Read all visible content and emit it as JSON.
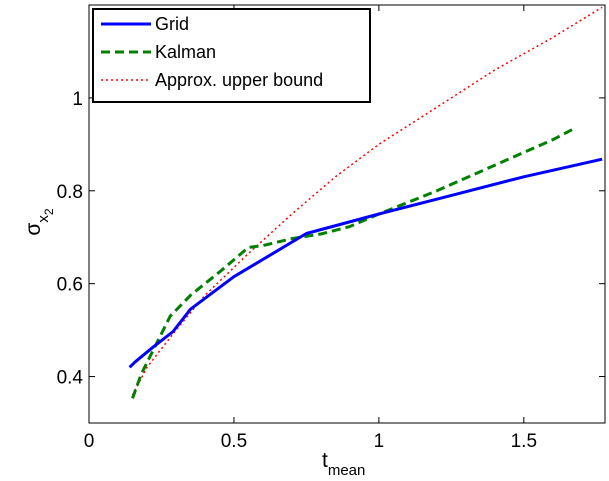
{
  "chart_data": {
    "type": "line",
    "title": "",
    "xlabel": {
      "main": "t",
      "subscript": "mean"
    },
    "ylabel": {
      "main": "σ",
      "subscript": "x",
      "subsubscript": "2"
    },
    "xlim": [
      0,
      1.78
    ],
    "ylim": [
      0.3,
      1.2
    ],
    "xticks": [
      0,
      0.5,
      1,
      1.5
    ],
    "xtick_labels": [
      "0",
      "0.5",
      "1",
      "1.5"
    ],
    "yticks": [
      0.4,
      0.6,
      0.8,
      1.0
    ],
    "ytick_labels": [
      "0.4",
      "0.6",
      "0.8",
      "1"
    ],
    "grid": false,
    "legend_position": "top-left",
    "series": [
      {
        "name": "Grid",
        "color": "#0000ff",
        "style": "solid",
        "x": [
          0.14,
          0.16,
          0.22,
          0.29,
          0.35,
          0.5,
          0.75,
          1.0,
          1.25,
          1.5,
          1.77
        ],
        "y": [
          0.42,
          0.432,
          0.463,
          0.497,
          0.545,
          0.615,
          0.708,
          0.75,
          0.79,
          0.83,
          0.868
        ]
      },
      {
        "name": "Kalman",
        "color": "#008000",
        "style": "dashed",
        "x": [
          0.15,
          0.18,
          0.22,
          0.28,
          0.35,
          0.45,
          0.55,
          0.6,
          0.7,
          0.8,
          0.9,
          1.0,
          1.2,
          1.4,
          1.6,
          1.68
        ],
        "y": [
          0.353,
          0.405,
          0.455,
          0.53,
          0.575,
          0.625,
          0.678,
          0.682,
          0.697,
          0.707,
          0.723,
          0.75,
          0.8,
          0.855,
          0.91,
          0.936
        ]
      },
      {
        "name": "Approx. upper bound",
        "color": "#ff0000",
        "style": "dotted",
        "x": [
          0.15,
          0.2,
          0.3,
          0.4,
          0.55,
          0.7,
          0.85,
          1.0,
          1.2,
          1.4,
          1.6,
          1.77
        ],
        "y": [
          0.36,
          0.42,
          0.5,
          0.575,
          0.665,
          0.75,
          0.83,
          0.9,
          0.98,
          1.06,
          1.13,
          1.195
        ]
      }
    ]
  }
}
